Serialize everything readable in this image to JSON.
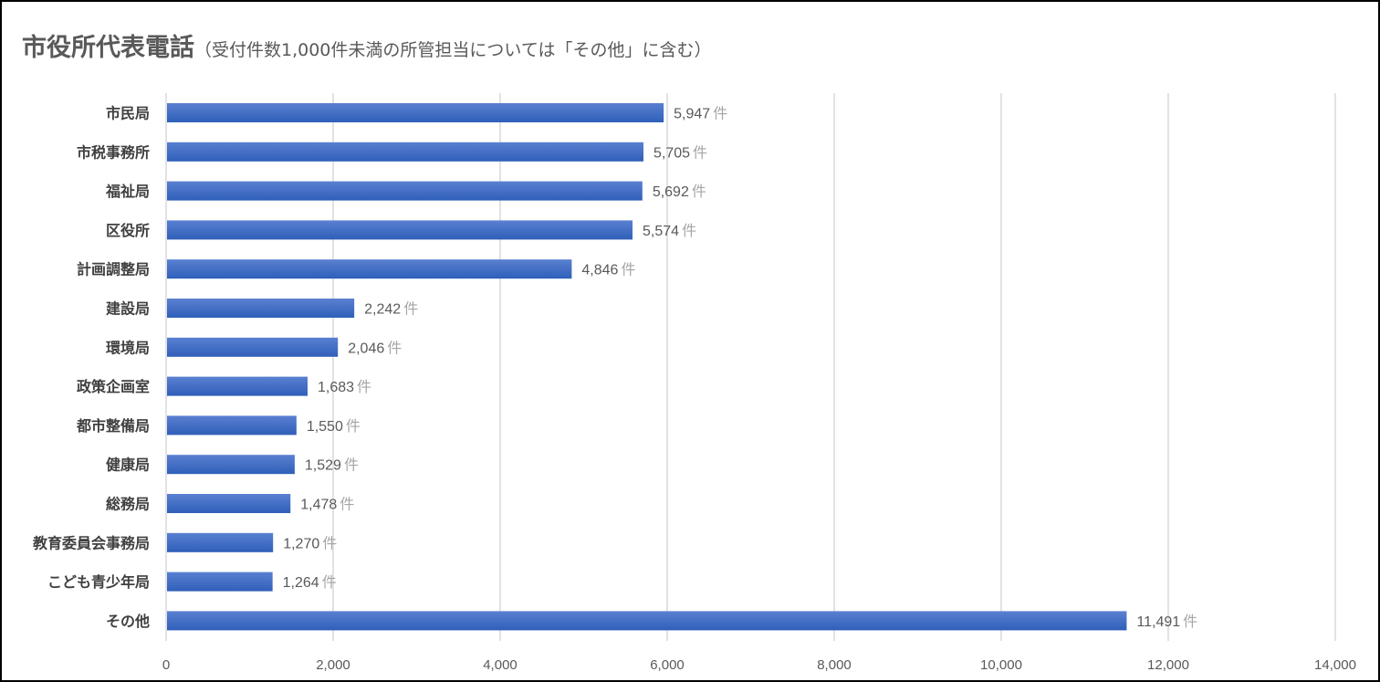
{
  "chart_data": {
    "type": "bar",
    "orientation": "horizontal",
    "title": "市役所代表電話",
    "subtitle": "（受付件数1,000件未満の所管担当については「その他」に含む）",
    "unit": "件",
    "categories": [
      "市民局",
      "市税事務所",
      "福祉局",
      "区役所",
      "計画調整局",
      "建設局",
      "環境局",
      "政策企画室",
      "都市整備局",
      "健康局",
      "総務局",
      "教育委員会事務局",
      "こども青少年局",
      "その他"
    ],
    "values": [
      5947,
      5705,
      5692,
      5574,
      4846,
      2242,
      2046,
      1683,
      1550,
      1529,
      1478,
      1270,
      1264,
      11491
    ],
    "value_labels": [
      "5,947",
      "5,705",
      "5,692",
      "5,574",
      "4,846",
      "2,242",
      "2,046",
      "1,683",
      "1,550",
      "1,529",
      "1,478",
      "1,270",
      "1,264",
      "11,491"
    ],
    "xlim": [
      0,
      14000
    ],
    "xticks": [
      0,
      2000,
      4000,
      6000,
      8000,
      10000,
      12000,
      14000
    ],
    "xtick_labels": [
      "0",
      "2,000",
      "4,000",
      "6,000",
      "8,000",
      "10,000",
      "12,000",
      "14,000"
    ],
    "xlabel": "",
    "ylabel": "",
    "grid": true,
    "legend": "none",
    "colors": {
      "bar_top": "#5a80d1",
      "bar_bottom": "#2f5fb9",
      "grid": "#d9d9d9"
    }
  }
}
